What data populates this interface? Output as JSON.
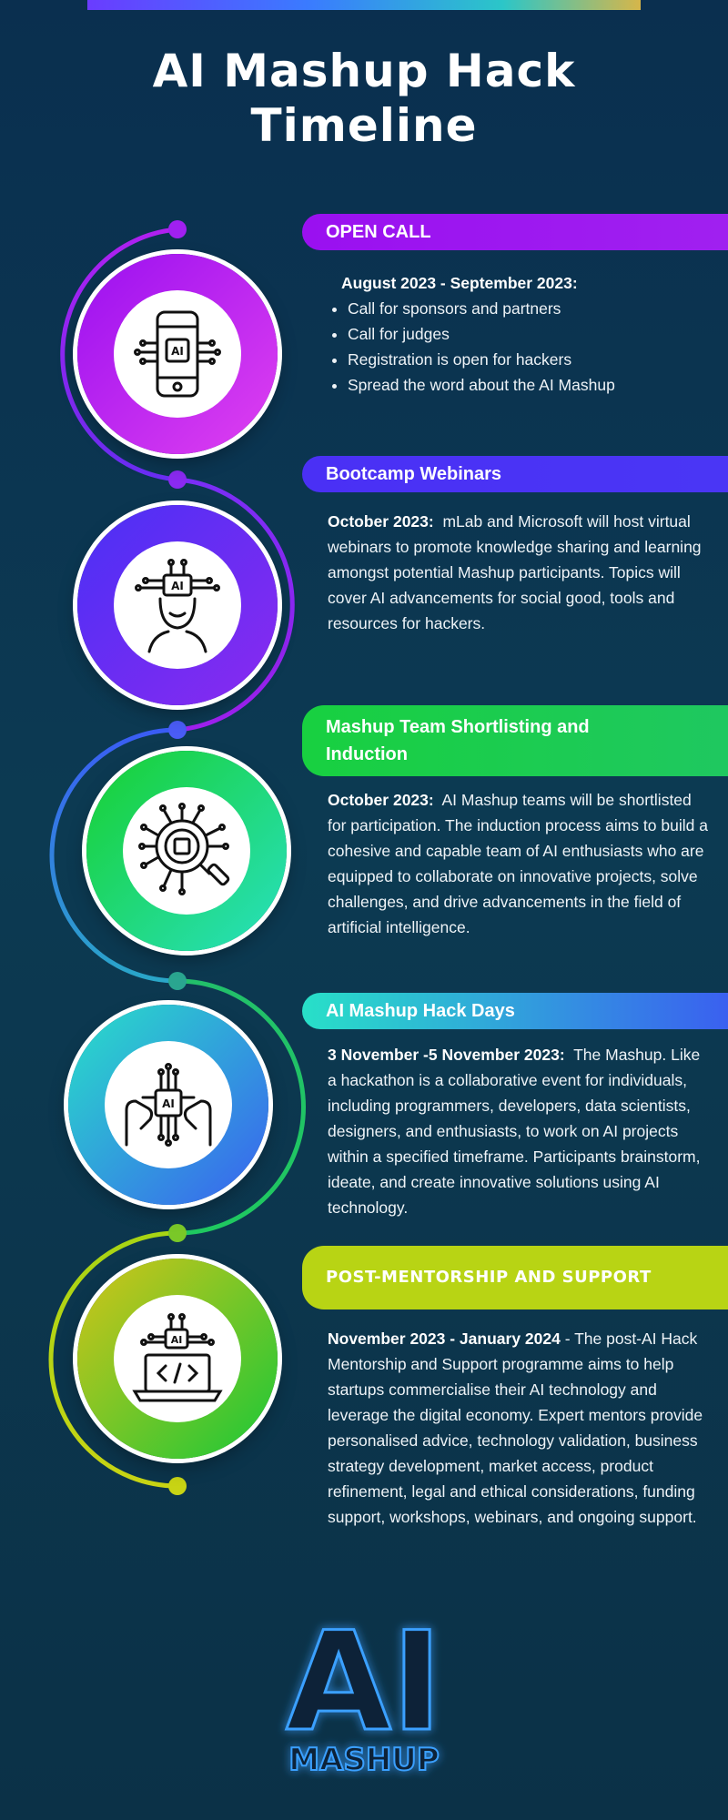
{
  "colors": {
    "background": "#0b3350",
    "open_call": "#a020f0",
    "bootcamp": "#4a36f5",
    "shortlisting": "#1fc860",
    "hack_days": "#2fd8c8",
    "mentorship": "#b8d414"
  },
  "title": {
    "line1": "AI Mashup Hack",
    "line2": "Timeline"
  },
  "stages": [
    {
      "heading": "OPEN CALL",
      "icon": "ai-phone-circuit-icon",
      "date": "August 2023 - September 2023:",
      "bullets": [
        "Call for sponsors and partners",
        "Call for judges",
        "Registration is open for hackers",
        "Spread the word about the AI Mashup"
      ]
    },
    {
      "heading": "Bootcamp Webinars",
      "icon": "ai-head-brain-icon",
      "date": "October 2023:",
      "text": "mLab and Microsoft will host virtual webinars to promote knowledge sharing and learning amongst potential Mashup participants. Topics will cover AI advancements for social good, tools and resources for hackers."
    },
    {
      "heading": "Mashup Team Shortlisting and Induction",
      "icon": "ai-chip-magnifier-icon",
      "date": "October 2023:",
      "text": "AI Mashup teams will be shortlisted for participation. The induction process aims to build a cohesive and capable team of AI enthusiasts who are equipped to collaborate on innovative projects, solve challenges, and drive advancements in the field of artificial intelligence."
    },
    {
      "heading": "AI Mashup Hack Days",
      "icon": "ai-chip-hands-icon",
      "date": "3 November -5  November 2023:",
      "text": "The Mashup. Like a  hackathon is a collaborative event for individuals, including programmers, developers, data scientists, designers, and enthusiasts, to work on AI projects within a specified timeframe. Participants brainstorm, ideate, and create innovative solutions using AI technology."
    },
    {
      "heading": "POST-MENTORSHIP AND SUPPORT",
      "icon": "ai-laptop-code-icon",
      "date": "November 2023 - January 2024",
      "text": "- The post-AI Hack Mentorship and Support programme aims to help startups commercialise their AI technology and leverage the digital economy. Expert mentors provide personalised advice, technology validation, business strategy development, market access, product refinement, legal and ethical considerations, funding support, workshops, webinars, and ongoing support."
    }
  ],
  "logo": {
    "big": "AI",
    "small": "MASHUP"
  }
}
